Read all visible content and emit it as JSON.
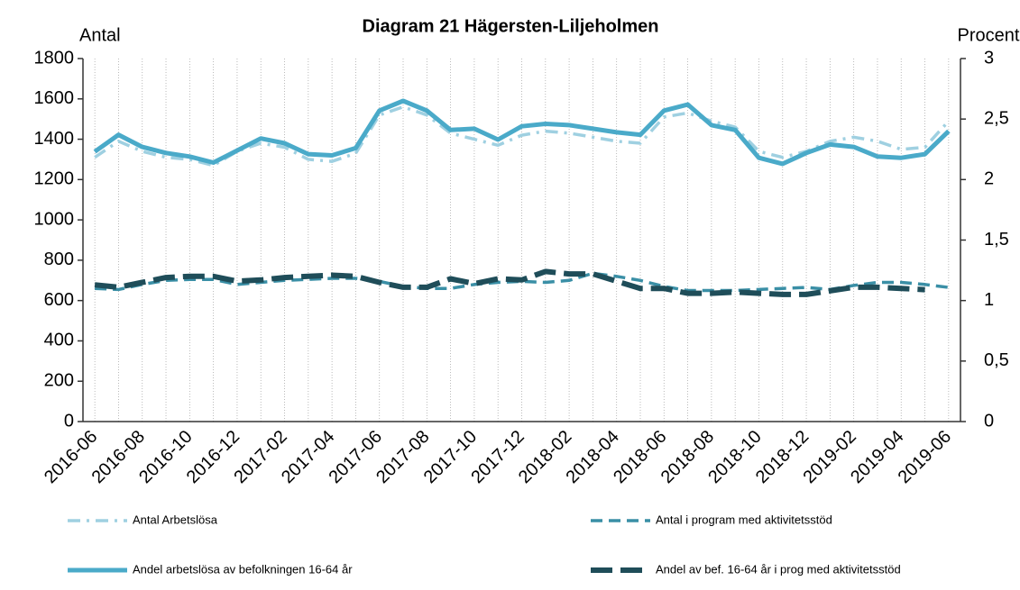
{
  "chart_data": {
    "type": "line",
    "title": "Diagram 21 Hägersten-Liljeholmen",
    "ylabel": "Antal",
    "y2label": "Procent",
    "categories": [
      "2016-06",
      null,
      "2016-08",
      null,
      "2016-10",
      null,
      "2016-12",
      null,
      "2017-02",
      null,
      "2017-04",
      null,
      "2017-06",
      null,
      "2017-08",
      null,
      "2017-10",
      null,
      "2017-12",
      null,
      "2018-02",
      null,
      "2018-04",
      null,
      "2018-06",
      null,
      "2018-08",
      null,
      "2018-10",
      null,
      "2018-12",
      null,
      "2019-02",
      null,
      "2019-04",
      null,
      "2019-06"
    ],
    "ylim": [
      0,
      1800
    ],
    "yticks": [
      0,
      200,
      400,
      600,
      800,
      1000,
      1200,
      1400,
      1600,
      1800
    ],
    "y2lim": [
      0,
      3
    ],
    "y2ticks": [
      0,
      {
        "value": 0.5,
        "label": "0,5"
      },
      1,
      {
        "value": 1.5,
        "label": "1,5"
      },
      2,
      {
        "value": 2.5,
        "label": "2,5"
      },
      3
    ],
    "grid": true,
    "legend": "bottom",
    "series": [
      {
        "name": "Antal Arbetslösa",
        "color": "#9fd0e1",
        "dash": "14 7 3 7",
        "width": 3.5,
        "values": [
          1310,
          1390,
          1340,
          1310,
          1300,
          1270,
          1340,
          1380,
          1360,
          1300,
          1290,
          1330,
          1520,
          1560,
          1520,
          1430,
          1400,
          1370,
          1420,
          1440,
          1430,
          1410,
          1390,
          1380,
          1510,
          1530,
          1490,
          1460,
          1340,
          1310,
          1340,
          1390,
          1410,
          1390,
          1350,
          1360,
          1490
        ]
      },
      {
        "name": "Antal i program med aktivitetsstöd",
        "color": "#3a8fa6",
        "dash": "13 7",
        "width": 3.5,
        "values": [
          660,
          655,
          680,
          700,
          705,
          705,
          680,
          690,
          700,
          705,
          710,
          710,
          695,
          670,
          660,
          660,
          680,
          690,
          695,
          690,
          700,
          735,
          720,
          700,
          670,
          650,
          650,
          650,
          655,
          660,
          665,
          655,
          675,
          690,
          690,
          680,
          665
        ]
      },
      {
        "name": "Andel arbetslösa av befolkningen 16-64 år",
        "color": "#4aaac9",
        "dash": "none",
        "width": 5,
        "axis": "y2",
        "values": [
          2.23,
          2.37,
          2.27,
          2.22,
          2.19,
          2.14,
          2.24,
          2.34,
          2.3,
          2.21,
          2.2,
          2.26,
          2.57,
          2.65,
          2.57,
          2.41,
          2.42,
          2.33,
          2.44,
          2.46,
          2.45,
          2.42,
          2.39,
          2.37,
          2.57,
          2.62,
          2.45,
          2.41,
          2.18,
          2.13,
          2.22,
          2.29,
          2.27,
          2.19,
          2.18,
          2.21,
          2.4
        ]
      },
      {
        "name": "Andel av bef. 16-64 år i prog med aktivitetsstöd",
        "color": "#1f4d59",
        "dash": "24 9",
        "width": 6,
        "axis": "y2",
        "values": [
          1.13,
          1.11,
          1.15,
          1.19,
          1.2,
          1.2,
          1.16,
          1.17,
          1.19,
          1.2,
          1.21,
          1.2,
          1.15,
          1.11,
          1.11,
          1.18,
          1.14,
          1.18,
          1.17,
          1.24,
          1.22,
          1.22,
          1.16,
          1.1,
          1.1,
          1.06,
          1.06,
          1.07,
          1.06,
          1.05,
          1.05,
          1.08,
          1.11,
          1.11,
          1.1,
          1.09,
          null
        ]
      }
    ]
  }
}
